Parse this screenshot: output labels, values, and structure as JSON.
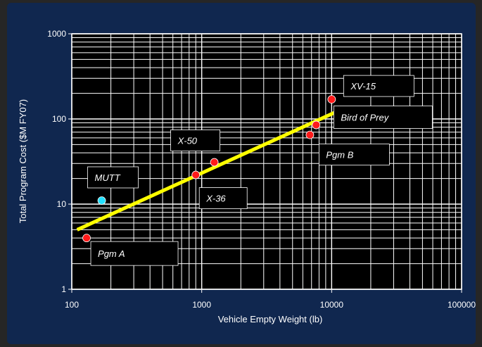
{
  "chart_data": {
    "type": "scatter",
    "xlabel": "Vehicle Empty Weight (lb)",
    "ylabel": "Total Program Cost ($M FY07)",
    "x_scale": "log",
    "y_scale": "log",
    "xlim": [
      100,
      100000
    ],
    "ylim": [
      1,
      1000
    ],
    "x_ticks": [
      "100",
      "1000",
      "10000",
      "100000"
    ],
    "y_ticks": [
      "1",
      "10",
      "100",
      "1000"
    ],
    "grid": true,
    "points": [
      {
        "label": "Pgm A",
        "x": 130,
        "y": 4,
        "color": "#ff1a1a"
      },
      {
        "label": "MUTT",
        "x": 170,
        "y": 11,
        "color": "#22e0ff"
      },
      {
        "label": "X-36",
        "x": 900,
        "y": 22,
        "color": "#ff1a1a"
      },
      {
        "label": "X-50",
        "x": 1250,
        "y": 31,
        "color": "#ff1a1a"
      },
      {
        "label": "Pgm B",
        "x": 6800,
        "y": 65,
        "color": "#ff1a1a"
      },
      {
        "label": "Bird of Prey",
        "x": 7600,
        "y": 85,
        "color": "#ff1a1a"
      },
      {
        "label": "XV-15",
        "x": 10000,
        "y": 170,
        "color": "#ff1a1a"
      }
    ],
    "trendline": {
      "x": [
        110,
        12000
      ],
      "y": [
        5,
        130
      ],
      "color": "#ffff00"
    },
    "colors": {
      "background": "#10274f",
      "plot_area": "#000000",
      "grid": "#ffffff",
      "label_box": "#000000",
      "mutt_label": "#ffff33"
    }
  }
}
